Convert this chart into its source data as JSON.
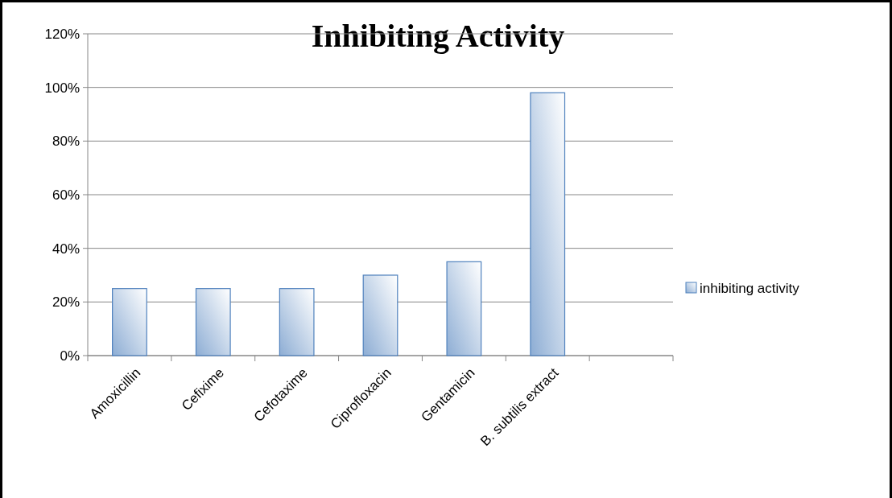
{
  "chart_data": {
    "type": "bar",
    "title": "Inhibiting Activity",
    "categories": [
      "Amoxicillin",
      "Cefixime",
      "Cefotaxime",
      "Ciprofloxacin",
      "Gentamicin",
      "B. subtilis extract",
      null
    ],
    "series": [
      {
        "name": "inhibiting activity",
        "color": "#4f81bd",
        "values": [
          25,
          25,
          25,
          30,
          35,
          98,
          null
        ]
      }
    ],
    "ylim": [
      0,
      120
    ],
    "yticks": [
      {
        "value": 0,
        "label": "0%"
      },
      {
        "value": 20,
        "label": "20%"
      },
      {
        "value": 40,
        "label": "40%"
      },
      {
        "value": 60,
        "label": "60%"
      },
      {
        "value": 80,
        "label": "80%"
      },
      {
        "value": 100,
        "label": "100%"
      },
      {
        "value": 120,
        "label": "120%"
      }
    ],
    "grid": "y",
    "legend": "right"
  }
}
